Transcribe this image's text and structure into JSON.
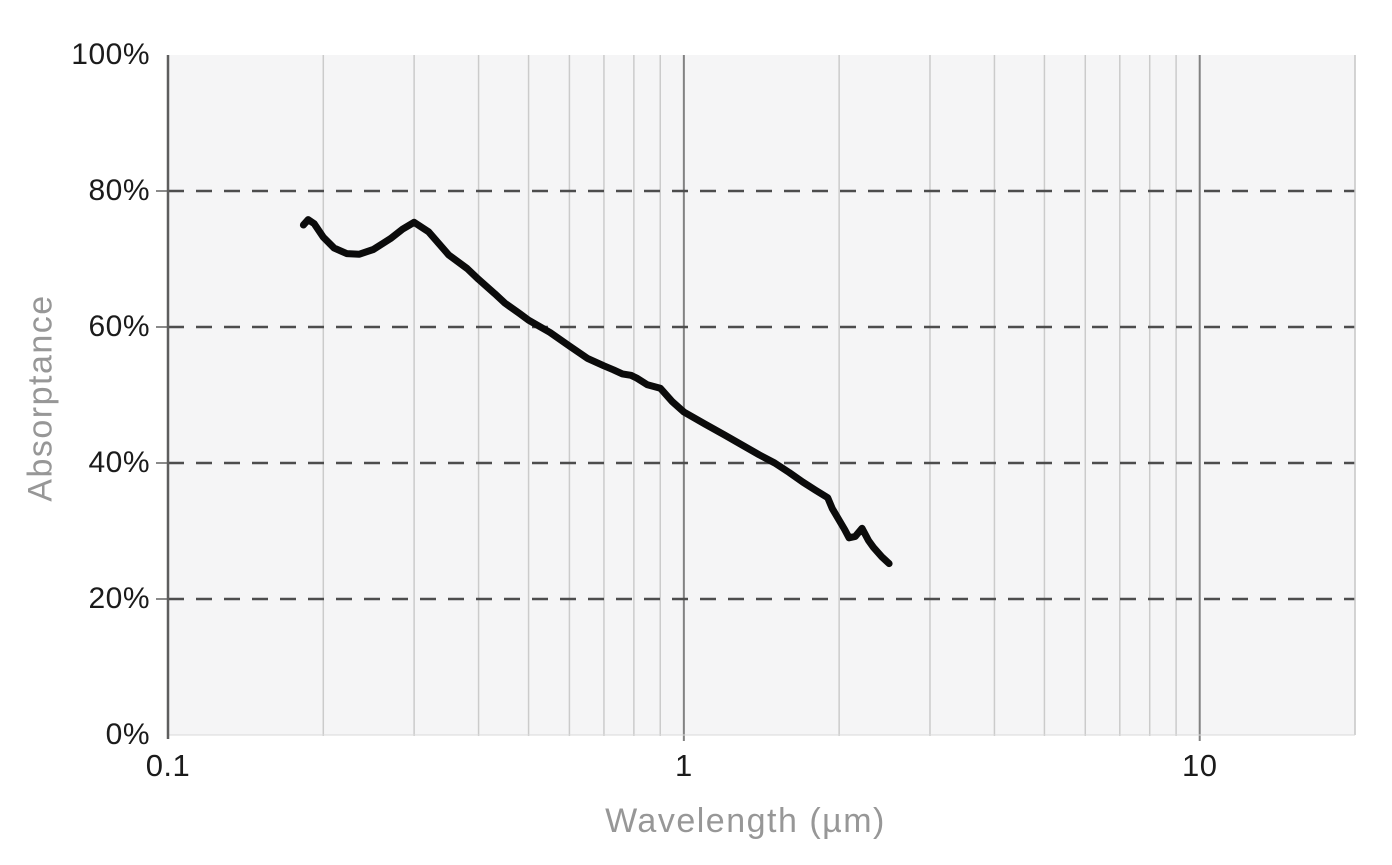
{
  "chart_data": {
    "type": "line",
    "title": "",
    "xlabel": "Wavelength (µm)",
    "ylabel": "Absorptance",
    "x_scale": "log",
    "x_range": [
      0.1,
      20
    ],
    "y_range": [
      0,
      100
    ],
    "grid": "on",
    "legend": "none",
    "x_ticks": [
      {
        "value": 0.1,
        "label": "0.1"
      },
      {
        "value": 1,
        "label": "1"
      },
      {
        "value": 10,
        "label": "10"
      }
    ],
    "y_ticks": [
      {
        "value": 0,
        "label": "0%"
      },
      {
        "value": 20,
        "label": "20%"
      },
      {
        "value": 40,
        "label": "40%"
      },
      {
        "value": 60,
        "label": "60%"
      },
      {
        "value": 80,
        "label": "80%"
      },
      {
        "value": 100,
        "label": "100%"
      }
    ],
    "minor_gridlines_x": [
      0.2,
      0.3,
      0.4,
      0.5,
      0.6,
      0.7,
      0.8,
      0.9,
      2,
      3,
      4,
      5,
      6,
      7,
      8,
      9
    ],
    "major_gridlines_x": [
      1,
      10
    ],
    "dashed_gridlines_y": [
      20,
      40,
      60,
      80
    ],
    "colors": {
      "plot_background": "#f5f5f6",
      "page_background": "#ffffff",
      "curve": "#0b0b0b",
      "minor_grid": "#cbcbcb",
      "major_grid": "#828282",
      "dashed_grid": "#4d4d4d",
      "axis_line": "#5e5e5e",
      "right_edge": "#c6c6c6",
      "bottom_edge": "#d9d9d9",
      "tick_mark": "#8a8a8a",
      "tick_label": "#1b1b1b",
      "axis_title": "#979797"
    },
    "series": [
      {
        "name": "absorptance-curve",
        "color": "#0b0b0b",
        "width": 7,
        "x": [
          0.183,
          0.187,
          0.192,
          0.2,
          0.21,
          0.222,
          0.235,
          0.25,
          0.27,
          0.285,
          0.3,
          0.32,
          0.35,
          0.38,
          0.4,
          0.43,
          0.45,
          0.48,
          0.5,
          0.55,
          0.6,
          0.65,
          0.7,
          0.73,
          0.76,
          0.79,
          0.81,
          0.85,
          0.9,
          0.95,
          1.0,
          1.1,
          1.2,
          1.3,
          1.4,
          1.5,
          1.6,
          1.7,
          1.8,
          1.9,
          1.94,
          2.0,
          2.05,
          2.09,
          2.15,
          2.215,
          2.28,
          2.33,
          2.42,
          2.5
        ],
        "y": [
          75.0,
          75.8,
          75.2,
          73.2,
          71.6,
          70.8,
          70.7,
          71.4,
          73.0,
          74.4,
          75.4,
          74.0,
          70.6,
          68.6,
          67.0,
          64.9,
          63.5,
          62.0,
          61.0,
          59.2,
          57.2,
          55.4,
          54.3,
          53.7,
          53.1,
          52.9,
          52.5,
          51.5,
          51.0,
          49.0,
          47.5,
          45.7,
          44.1,
          42.6,
          41.2,
          40.0,
          38.6,
          37.2,
          36.0,
          34.9,
          33.3,
          31.6,
          30.2,
          29.0,
          29.2,
          30.4,
          28.6,
          27.6,
          26.2,
          25.2
        ]
      }
    ]
  }
}
